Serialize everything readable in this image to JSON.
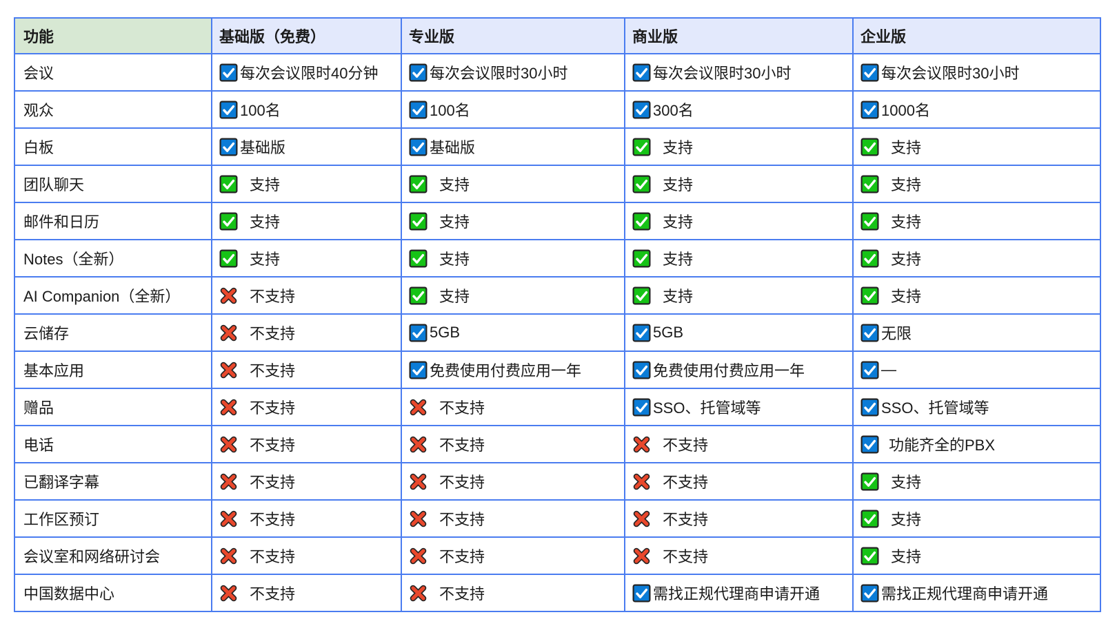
{
  "colors": {
    "grid_border": "#4a7cf0",
    "header_feature_bg": "#d7e8d3",
    "header_plan_bg": "#e3e9fc",
    "text": "#1b1b1b",
    "blue_check_fill": "#0b7cd7",
    "green_check_fill": "#16c316",
    "red_cross_fill": "#e9482c",
    "icon_outline": "#242424",
    "check_stroke": "#ffffff"
  },
  "icons": {
    "blue": "blue-check-icon",
    "green": "green-check-icon",
    "red": "red-cross-icon"
  },
  "table": {
    "columns": [
      {
        "label": "功能"
      },
      {
        "label": "基础版（免费）"
      },
      {
        "label": "专业版"
      },
      {
        "label": "商业版"
      },
      {
        "label": "企业版"
      }
    ],
    "rows": [
      {
        "feature": "会议",
        "cells": [
          {
            "icon": "blue",
            "text": "每次会议限时40分钟"
          },
          {
            "icon": "blue",
            "text": "每次会议限时30小时"
          },
          {
            "icon": "blue",
            "text": "每次会议限时30小时"
          },
          {
            "icon": "blue",
            "text": "每次会议限时30小时"
          }
        ]
      },
      {
        "feature": "观众",
        "cells": [
          {
            "icon": "blue",
            "text": "100名"
          },
          {
            "icon": "blue",
            "text": "100名"
          },
          {
            "icon": "blue",
            "text": "300名"
          },
          {
            "icon": "blue",
            "text": "1000名"
          }
        ]
      },
      {
        "feature": "白板",
        "cells": [
          {
            "icon": "blue",
            "text": "基础版"
          },
          {
            "icon": "blue",
            "text": "基础版"
          },
          {
            "icon": "green",
            "text": "支持"
          },
          {
            "icon": "green",
            "text": "支持"
          }
        ]
      },
      {
        "feature": "团队聊天",
        "cells": [
          {
            "icon": "green",
            "text": "支持"
          },
          {
            "icon": "green",
            "text": "支持"
          },
          {
            "icon": "green",
            "text": "支持"
          },
          {
            "icon": "green",
            "text": "支持"
          }
        ]
      },
      {
        "feature": "邮件和日历",
        "cells": [
          {
            "icon": "green",
            "text": "支持"
          },
          {
            "icon": "green",
            "text": "支持"
          },
          {
            "icon": "green",
            "text": "支持"
          },
          {
            "icon": "green",
            "text": "支持"
          }
        ]
      },
      {
        "feature": "Notes（全新）",
        "cells": [
          {
            "icon": "green",
            "text": "支持"
          },
          {
            "icon": "green",
            "text": "支持"
          },
          {
            "icon": "green",
            "text": "支持"
          },
          {
            "icon": "green",
            "text": "支持"
          }
        ]
      },
      {
        "feature": "AI Companion（全新）",
        "cells": [
          {
            "icon": "red",
            "text": "不支持"
          },
          {
            "icon": "green",
            "text": "支持"
          },
          {
            "icon": "green",
            "text": "支持"
          },
          {
            "icon": "green",
            "text": "支持"
          }
        ]
      },
      {
        "feature": "云储存",
        "cells": [
          {
            "icon": "red",
            "text": "不支持"
          },
          {
            "icon": "blue",
            "text": "5GB"
          },
          {
            "icon": "blue",
            "text": "5GB"
          },
          {
            "icon": "blue",
            "text": "无限"
          }
        ]
      },
      {
        "feature": "基本应用",
        "cells": [
          {
            "icon": "red",
            "text": "不支持"
          },
          {
            "icon": "blue",
            "text": "免费使用付费应用一年"
          },
          {
            "icon": "blue",
            "text": "免费使用付费应用一年"
          },
          {
            "icon": "blue",
            "text": "—"
          }
        ]
      },
      {
        "feature": "赠品",
        "cells": [
          {
            "icon": "red",
            "text": "不支持"
          },
          {
            "icon": "red",
            "text": "不支持"
          },
          {
            "icon": "blue",
            "text": "SSO、托管域等"
          },
          {
            "icon": "blue",
            "text": "SSO、托管域等"
          }
        ]
      },
      {
        "feature": "电话",
        "cells": [
          {
            "icon": "red",
            "text": "不支持"
          },
          {
            "icon": "red",
            "text": "不支持"
          },
          {
            "icon": "red",
            "text": "不支持"
          },
          {
            "icon": "blue",
            "text": "功能齐全的PBX",
            "spaced": true
          }
        ]
      },
      {
        "feature": "已翻译字幕",
        "cells": [
          {
            "icon": "red",
            "text": "不支持"
          },
          {
            "icon": "red",
            "text": "不支持"
          },
          {
            "icon": "red",
            "text": "不支持"
          },
          {
            "icon": "green",
            "text": "支持"
          }
        ]
      },
      {
        "feature": "工作区预订",
        "cells": [
          {
            "icon": "red",
            "text": "不支持"
          },
          {
            "icon": "red",
            "text": "不支持"
          },
          {
            "icon": "red",
            "text": "不支持"
          },
          {
            "icon": "green",
            "text": "支持"
          }
        ]
      },
      {
        "feature": "会议室和网络研讨会",
        "cells": [
          {
            "icon": "red",
            "text": "不支持"
          },
          {
            "icon": "red",
            "text": "不支持"
          },
          {
            "icon": "red",
            "text": "不支持"
          },
          {
            "icon": "green",
            "text": "支持"
          }
        ]
      },
      {
        "feature": "中国数据中心",
        "cells": [
          {
            "icon": "red",
            "text": "不支持"
          },
          {
            "icon": "red",
            "text": "不支持"
          },
          {
            "icon": "blue",
            "text": "需找正规代理商申请开通"
          },
          {
            "icon": "blue",
            "text": "需找正规代理商申请开通"
          }
        ]
      }
    ]
  }
}
